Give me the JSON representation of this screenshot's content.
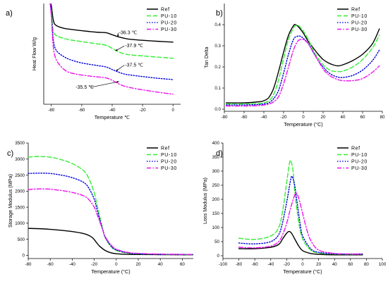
{
  "colors": {
    "Ref": "#000000",
    "PU-10": "#33ee33",
    "PU-20": "#0000dd",
    "PU-30": "#ee11ee"
  },
  "dash_styles": {
    "Ref": "solid",
    "PU-10": "dashed",
    "PU-20": "dotted",
    "PU-30": "dash-dot"
  },
  "chart_data": [
    {
      "id": "a",
      "type": "line",
      "panel_label": "a)",
      "xlabel": "Temperature ℃",
      "ylabel": "Heat Flow W/g",
      "xlim": [
        -85,
        5
      ],
      "ylim": [
        0,
        1
      ],
      "x_ticks": [
        -80,
        -60,
        -40,
        -20,
        0
      ],
      "x_tick_labels": [
        "-80",
        "-60",
        "-40",
        "-20",
        "0"
      ],
      "y_ticks": [],
      "y_tick_labels": [],
      "legend": {
        "position": "top-right",
        "entries": [
          "Ref",
          "PU-10",
          "PU-20",
          "PU-30"
        ]
      },
      "series": [
        {
          "name": "Ref",
          "x": [
            -81,
            -80,
            -79,
            -78,
            -76,
            -72,
            -68,
            -60,
            -50,
            -44,
            -40,
            -36,
            -32,
            -28,
            -20,
            -10,
            0
          ],
          "y": [
            1.02,
            0.98,
            0.86,
            0.8,
            0.775,
            0.755,
            0.745,
            0.73,
            0.715,
            0.71,
            0.69,
            0.67,
            0.655,
            0.645,
            0.635,
            0.625,
            0.617
          ]
        },
        {
          "name": "PU-10",
          "x": [
            -81,
            -80,
            -79,
            -78,
            -76,
            -72,
            -68,
            -60,
            -50,
            -44,
            -40,
            -36,
            -32,
            -28,
            -20,
            -10,
            0
          ],
          "y": [
            1.02,
            0.93,
            0.75,
            0.7,
            0.675,
            0.655,
            0.64,
            0.622,
            0.6,
            0.585,
            0.555,
            0.522,
            0.5,
            0.49,
            0.48,
            0.468,
            0.457
          ]
        },
        {
          "name": "PU-20",
          "x": [
            -81,
            -80,
            -79,
            -78,
            -76,
            -72,
            -68,
            -60,
            -50,
            -44,
            -40,
            -36,
            -32,
            -28,
            -20,
            -10,
            0
          ],
          "y": [
            1.02,
            0.9,
            0.68,
            0.58,
            0.52,
            0.475,
            0.445,
            0.41,
            0.385,
            0.37,
            0.345,
            0.32,
            0.3,
            0.29,
            0.275,
            0.258,
            0.245
          ]
        },
        {
          "name": "PU-30",
          "x": [
            -81,
            -80,
            -79,
            -78,
            -76,
            -72,
            -68,
            -60,
            -50,
            -44,
            -40,
            -36,
            -32,
            -28,
            -20,
            -10,
            0
          ],
          "y": [
            1.02,
            0.88,
            0.62,
            0.5,
            0.42,
            0.35,
            0.315,
            0.29,
            0.272,
            0.262,
            0.238,
            0.205,
            0.18,
            0.165,
            0.143,
            0.12,
            0.1
          ]
        }
      ],
      "annotations": [
        {
          "text": "-36.3 ℃",
          "x": -36.3,
          "y": 0.67,
          "tx": -35.5,
          "ty": 0.695
        },
        {
          "text": "-37.9 ℃",
          "x": -37.9,
          "y": 0.53,
          "tx": -31.5,
          "ty": 0.565
        },
        {
          "text": "-37.5 ℃",
          "x": -37.5,
          "y": 0.33,
          "tx": -31.5,
          "ty": 0.375
        },
        {
          "text": "-35.5 ℃",
          "x": -35.5,
          "y": 0.225,
          "tx": -64,
          "ty": 0.155
        }
      ]
    },
    {
      "id": "b",
      "type": "line",
      "panel_label": "b)",
      "xlabel": "Temperature (°C)",
      "ylabel": "Tan Delta",
      "xlim": [
        -80,
        80
      ],
      "ylim": [
        -0.01,
        0.5
      ],
      "x_ticks": [
        -80,
        -60,
        -40,
        -20,
        0,
        20,
        40,
        60,
        80
      ],
      "x_tick_labels": [
        "-80",
        "-60",
        "-40",
        "-20",
        "0",
        "20",
        "40",
        "60",
        "80"
      ],
      "y_ticks": [
        0.0,
        0.1,
        0.2,
        0.3,
        0.4
      ],
      "y_tick_labels": [
        "0.0",
        "0.1",
        "0.2",
        "0.3",
        "0.4"
      ],
      "legend": {
        "position": "top-right",
        "entries": [
          "Ref",
          "PU-10",
          "PU-20",
          "PU-30"
        ]
      },
      "series": [
        {
          "name": "Ref",
          "x": [
            -78,
            -60,
            -45,
            -40,
            -35,
            -30,
            -25,
            -20,
            -15,
            -10,
            -8,
            -5,
            0,
            5,
            10,
            15,
            20,
            25,
            30,
            35,
            40,
            50,
            60,
            70,
            77
          ],
          "y": [
            0.03,
            0.03,
            0.035,
            0.04,
            0.055,
            0.1,
            0.18,
            0.27,
            0.35,
            0.395,
            0.4,
            0.39,
            0.36,
            0.32,
            0.29,
            0.26,
            0.235,
            0.22,
            0.21,
            0.205,
            0.21,
            0.23,
            0.26,
            0.31,
            0.38
          ]
        },
        {
          "name": "PU-10",
          "x": [
            -78,
            -60,
            -45,
            -40,
            -35,
            -30,
            -25,
            -20,
            -15,
            -10,
            -8,
            -5,
            0,
            5,
            10,
            15,
            20,
            25,
            30,
            35,
            40,
            50,
            60,
            70,
            77
          ],
          "y": [
            0.025,
            0.025,
            0.027,
            0.03,
            0.04,
            0.07,
            0.14,
            0.24,
            0.33,
            0.385,
            0.395,
            0.395,
            0.37,
            0.33,
            0.28,
            0.24,
            0.21,
            0.19,
            0.18,
            0.178,
            0.18,
            0.2,
            0.235,
            0.29,
            0.35
          ]
        },
        {
          "name": "PU-20",
          "x": [
            -78,
            -60,
            -45,
            -40,
            -35,
            -30,
            -25,
            -20,
            -15,
            -10,
            -6,
            -3,
            0,
            5,
            10,
            15,
            20,
            25,
            30,
            35,
            40,
            50,
            60,
            70,
            77
          ],
          "y": [
            0.02,
            0.02,
            0.022,
            0.025,
            0.03,
            0.05,
            0.09,
            0.17,
            0.26,
            0.33,
            0.345,
            0.345,
            0.335,
            0.31,
            0.27,
            0.23,
            0.2,
            0.175,
            0.16,
            0.152,
            0.15,
            0.16,
            0.185,
            0.23,
            0.28
          ]
        },
        {
          "name": "PU-30",
          "x": [
            -78,
            -60,
            -45,
            -40,
            -35,
            -30,
            -25,
            -20,
            -15,
            -10,
            -6,
            -3,
            0,
            5,
            10,
            15,
            20,
            25,
            30,
            35,
            40,
            50,
            60,
            70,
            77
          ],
          "y": [
            0.015,
            0.015,
            0.017,
            0.02,
            0.024,
            0.035,
            0.06,
            0.12,
            0.2,
            0.28,
            0.32,
            0.33,
            0.33,
            0.31,
            0.27,
            0.23,
            0.19,
            0.165,
            0.15,
            0.14,
            0.135,
            0.135,
            0.145,
            0.175,
            0.205
          ]
        }
      ]
    },
    {
      "id": "c",
      "type": "line",
      "panel_label": "c)",
      "xlabel": "Temperature (°C)",
      "ylabel": "Storage Modulus (MPa)",
      "xlim": [
        -80,
        70
      ],
      "ylim": [
        -100,
        3500
      ],
      "x_ticks": [
        -80,
        -60,
        -40,
        -20,
        0,
        20,
        40,
        60
      ],
      "x_tick_labels": [
        "-80",
        "-60",
        "-40",
        "-20",
        "0",
        "20",
        "40",
        "60"
      ],
      "y_ticks": [
        0,
        500,
        1000,
        1500,
        2000,
        2500,
        3000,
        3500
      ],
      "y_tick_labels": [
        "0",
        "500",
        "1000",
        "1500",
        "2000",
        "2500",
        "3000",
        "3500"
      ],
      "legend": {
        "position": "top-right",
        "entries": [
          "Ref",
          "PU-10",
          "PU-20",
          "PU-30"
        ]
      },
      "series": [
        {
          "name": "Ref",
          "x": [
            -80,
            -70,
            -60,
            -50,
            -40,
            -30,
            -25,
            -22,
            -20,
            -18,
            -15,
            -10,
            -5,
            0,
            10,
            20,
            40,
            60,
            70
          ],
          "y": [
            840,
            830,
            810,
            780,
            740,
            680,
            620,
            560,
            490,
            400,
            280,
            150,
            80,
            50,
            30,
            25,
            20,
            18,
            17
          ]
        },
        {
          "name": "PU-10",
          "x": [
            -80,
            -70,
            -60,
            -50,
            -40,
            -30,
            -25,
            -20,
            -18,
            -15,
            -12,
            -10,
            -5,
            0,
            10,
            20,
            40,
            60,
            70
          ],
          "y": [
            3060,
            3080,
            3060,
            2980,
            2860,
            2650,
            2400,
            1950,
            1650,
            1200,
            780,
            550,
            280,
            150,
            70,
            45,
            30,
            25,
            22
          ]
        },
        {
          "name": "PU-20",
          "x": [
            -80,
            -70,
            -60,
            -50,
            -40,
            -30,
            -25,
            -20,
            -18,
            -15,
            -12,
            -10,
            -5,
            0,
            10,
            20,
            40,
            60,
            70
          ],
          "y": [
            2550,
            2560,
            2550,
            2500,
            2420,
            2280,
            2100,
            1750,
            1500,
            1120,
            760,
            560,
            300,
            170,
            80,
            50,
            32,
            27,
            24
          ]
        },
        {
          "name": "PU-30",
          "x": [
            -80,
            -70,
            -60,
            -50,
            -40,
            -30,
            -25,
            -20,
            -18,
            -15,
            -12,
            -10,
            -5,
            0,
            10,
            20,
            40,
            60,
            70
          ],
          "y": [
            2050,
            2070,
            2060,
            2020,
            1960,
            1860,
            1740,
            1500,
            1330,
            1050,
            760,
            580,
            330,
            190,
            95,
            60,
            38,
            30,
            27
          ]
        }
      ]
    },
    {
      "id": "d",
      "type": "line",
      "panel_label": "d)",
      "xlabel": "Temperature (°C)",
      "ylabel": "Loss Modulus (MPa)",
      "xlim": [
        -100,
        100
      ],
      "ylim": [
        -10,
        400
      ],
      "x_ticks": [
        -100,
        -80,
        -60,
        -40,
        -20,
        0,
        20,
        40,
        60,
        80,
        100
      ],
      "x_tick_labels": [
        "-100",
        "-80",
        "-60",
        "-40",
        "-20",
        "0",
        "20",
        "40",
        "60",
        "80",
        "100"
      ],
      "y_ticks": [
        0,
        50,
        100,
        150,
        200,
        250,
        300,
        350,
        400
      ],
      "y_tick_labels": [
        "0",
        "50",
        "100",
        "150",
        "200",
        "250",
        "300",
        "350",
        "400"
      ],
      "legend": {
        "position": "top-right",
        "entries": [
          "Ref",
          "PU-10",
          "PU-20",
          "PU-30"
        ]
      },
      "series": [
        {
          "name": "Ref",
          "x": [
            -80,
            -60,
            -40,
            -30,
            -25,
            -20,
            -17,
            -14,
            -10,
            -5,
            0,
            10,
            20,
            40,
            60,
            75
          ],
          "y": [
            25,
            25,
            30,
            40,
            60,
            80,
            86,
            80,
            60,
            35,
            18,
            8,
            5,
            3,
            3,
            3
          ]
        },
        {
          "name": "PU-10",
          "x": [
            -80,
            -60,
            -40,
            -30,
            -25,
            -20,
            -17,
            -15,
            -12,
            -10,
            -5,
            0,
            10,
            20,
            40,
            60,
            75
          ],
          "y": [
            62,
            58,
            70,
            100,
            160,
            260,
            320,
            338,
            300,
            230,
            120,
            60,
            20,
            10,
            6,
            5,
            5
          ]
        },
        {
          "name": "PU-20",
          "x": [
            -80,
            -60,
            -40,
            -30,
            -25,
            -20,
            -15,
            -13,
            -10,
            -7,
            -3,
            0,
            10,
            20,
            40,
            60,
            75
          ],
          "y": [
            45,
            42,
            50,
            75,
            120,
            190,
            270,
            280,
            250,
            190,
            110,
            70,
            25,
            12,
            7,
            6,
            6
          ]
        },
        {
          "name": "PU-30",
          "x": [
            -80,
            -60,
            -40,
            -30,
            -25,
            -20,
            -15,
            -10,
            -8,
            -5,
            0,
            5,
            10,
            20,
            40,
            60,
            75
          ],
          "y": [
            30,
            28,
            34,
            50,
            75,
            115,
            170,
            215,
            222,
            205,
            150,
            95,
            55,
            20,
            8,
            6,
            6
          ]
        }
      ]
    }
  ]
}
